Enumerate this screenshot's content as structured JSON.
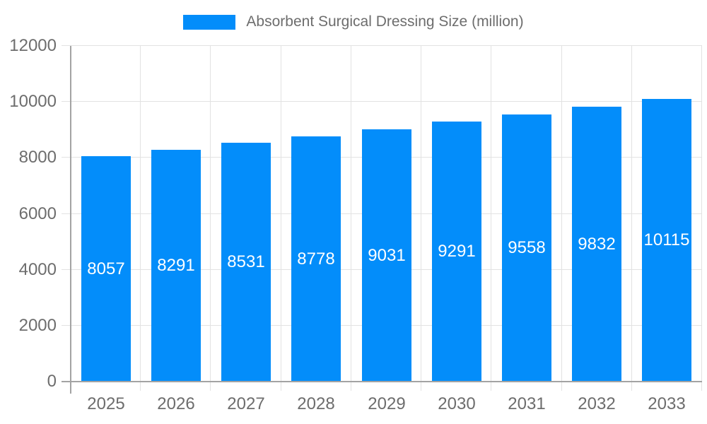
{
  "chart_data": {
    "type": "bar",
    "title": "",
    "categories": [
      "2025",
      "2026",
      "2027",
      "2028",
      "2029",
      "2030",
      "2031",
      "2032",
      "2033"
    ],
    "series": [
      {
        "name": "Absorbent Surgical Dressing Size (million)",
        "values": [
          8057,
          8291,
          8531,
          8778,
          9031,
          9291,
          9558,
          9832,
          10115
        ]
      }
    ],
    "xlabel": "",
    "ylabel": "",
    "y_ticks": [
      0,
      2000,
      4000,
      6000,
      8000,
      10000,
      12000
    ],
    "ylim": [
      0,
      12000
    ],
    "grid": true,
    "legend_position": "top",
    "bar_value_labels_visible": true,
    "colors": {
      "bar": "#038DFA",
      "bar_label": "#ffffff",
      "axis_text": "#6d6d6d",
      "grid_line": "#e2e2e2",
      "axis_line": "#a3a3a3",
      "background": "#ffffff"
    }
  }
}
